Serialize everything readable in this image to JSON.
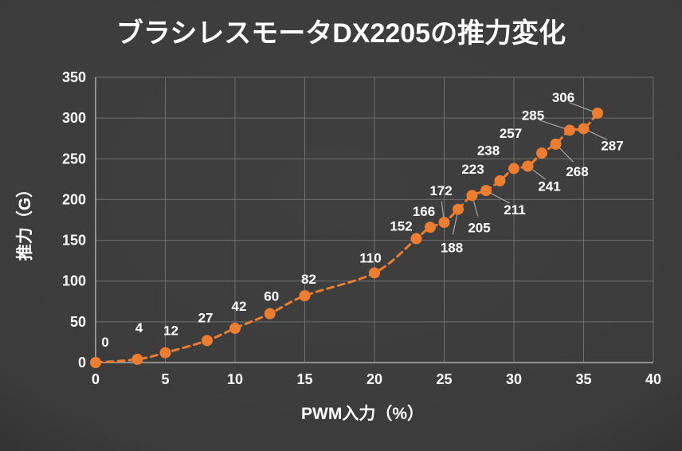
{
  "chart_data": {
    "type": "scatter",
    "title": "ブラシレスモータDX2205の推力変化",
    "xlabel": "PWM入力（%）",
    "ylabel": "推力（G）",
    "xlim": [
      0,
      40
    ],
    "ylim": [
      0,
      350
    ],
    "x_ticks": [
      0,
      5,
      10,
      15,
      20,
      25,
      30,
      35,
      40
    ],
    "y_ticks": [
      0,
      50,
      100,
      150,
      200,
      250,
      300,
      350
    ],
    "grid": true,
    "legend": "none",
    "line_style": "dashed-smooth",
    "marker": "circle",
    "colors": {
      "background": "#3F3F3F",
      "text": "#FFFFFF",
      "gridline": "#6F6F6F",
      "axis": "#ABABAB",
      "leader": "#A6A6A6",
      "series": "#ED7D31"
    },
    "series": [
      {
        "name": "推力",
        "color": "#ED7D31",
        "points": [
          {
            "x": 0,
            "y": 0,
            "label": "0",
            "dx": 12,
            "dy": -26,
            "leader": false
          },
          {
            "x": 3,
            "y": 4,
            "label": "4",
            "dx": 2,
            "dy": -40,
            "leader": false
          },
          {
            "x": 5,
            "y": 12,
            "label": "12",
            "dx": 7,
            "dy": -28,
            "leader": false
          },
          {
            "x": 8,
            "y": 27,
            "label": "27",
            "dx": -2,
            "dy": -29,
            "leader": false
          },
          {
            "x": 10,
            "y": 42,
            "label": "42",
            "dx": 5,
            "dy": -28,
            "leader": false
          },
          {
            "x": 12.5,
            "y": 60,
            "label": "60",
            "dx": 2,
            "dy": -22,
            "leader": false
          },
          {
            "x": 15,
            "y": 82,
            "label": "82",
            "dx": 5,
            "dy": -21,
            "leader": false
          },
          {
            "x": 20,
            "y": 110,
            "label": "110",
            "dx": -5,
            "dy": -19,
            "leader": false
          },
          {
            "x": 23,
            "y": 152,
            "label": "152",
            "dx": -19,
            "dy": -16,
            "leader": false
          },
          {
            "x": 24,
            "y": 166,
            "label": "166",
            "dx": -8,
            "dy": -20,
            "leader": false
          },
          {
            "x": 25,
            "y": 172,
            "label": "172",
            "dx": -4,
            "dy": -40,
            "leader": true
          },
          {
            "x": 26,
            "y": 188,
            "label": "188",
            "dx": -8,
            "dy": 48,
            "leader": true
          },
          {
            "x": 27,
            "y": 205,
            "label": "205",
            "dx": 9,
            "dy": 40,
            "leader": true
          },
          {
            "x": 28,
            "y": 211,
            "label": "211",
            "dx": 36,
            "dy": 24,
            "leader": true
          },
          {
            "x": 29,
            "y": 223,
            "label": "223",
            "dx": -34,
            "dy": -15,
            "leader": false
          },
          {
            "x": 30,
            "y": 238,
            "label": "238",
            "dx": -32,
            "dy": -23,
            "leader": false
          },
          {
            "x": 31,
            "y": 241,
            "label": "241",
            "dx": 27,
            "dy": 25,
            "leader": true
          },
          {
            "x": 32,
            "y": 257,
            "label": "257",
            "dx": -39,
            "dy": -25,
            "leader": false
          },
          {
            "x": 33,
            "y": 268,
            "label": "268",
            "dx": 27,
            "dy": 34,
            "leader": true
          },
          {
            "x": 34,
            "y": 285,
            "label": "285",
            "dx": -46,
            "dy": -19,
            "leader": true
          },
          {
            "x": 35,
            "y": 287,
            "label": "287",
            "dx": 36,
            "dy": 21,
            "leader": true
          },
          {
            "x": 36,
            "y": 306,
            "label": "306",
            "dx": -43,
            "dy": -20,
            "leader": true
          }
        ]
      }
    ]
  }
}
